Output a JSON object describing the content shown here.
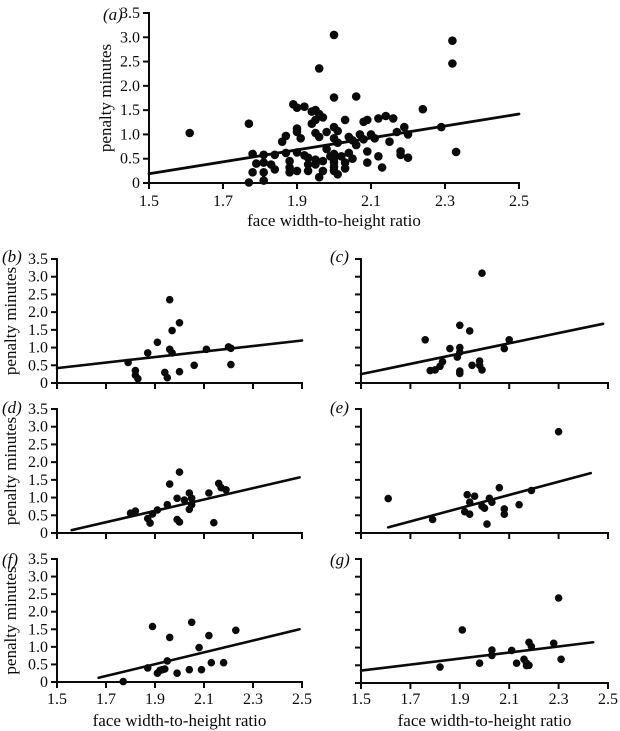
{
  "figure": {
    "x_label": "face width-to-height ratio",
    "y_label": "penalty minutes",
    "xlim": [
      1.5,
      2.5
    ],
    "ylim": [
      0,
      3.5
    ],
    "x_ticks": [
      1.5,
      1.7,
      1.9,
      2.1,
      2.3,
      2.5
    ],
    "x_tick_labels": [
      "1.5",
      "1.7",
      "1.9",
      "2.1",
      "2.3",
      "2.5"
    ],
    "y_ticks": [
      0,
      0.5,
      1.0,
      1.5,
      2.0,
      2.5,
      3.0,
      3.5
    ],
    "y_tick_labels": [
      "0",
      "0.5",
      "1.0",
      "1.5",
      "2.0",
      "2.5",
      "3.0",
      "3.5"
    ],
    "ink_color": "#0a0a0a",
    "background_color": "#ffffff",
    "grid": false,
    "legend": "none"
  },
  "chart_data": [
    {
      "id": "a",
      "label": "(a)",
      "type": "scatter",
      "xlabel": "face width-to-height ratio",
      "ylabel": "penalty minutes",
      "regression_line": {
        "x1": 1.5,
        "y1": 0.19,
        "x2": 2.5,
        "y2": 1.42
      },
      "points": [
        [
          1.61,
          1.03
        ],
        [
          1.77,
          1.22
        ],
        [
          1.77,
          0.01
        ],
        [
          1.78,
          0.6
        ],
        [
          1.79,
          0.4
        ],
        [
          1.78,
          0.22
        ],
        [
          1.81,
          0.58
        ],
        [
          1.81,
          0.42
        ],
        [
          1.81,
          0.22
        ],
        [
          1.81,
          0.05
        ],
        [
          1.83,
          0.38
        ],
        [
          1.84,
          0.58
        ],
        [
          1.84,
          0.28
        ],
        [
          1.86,
          0.85
        ],
        [
          1.87,
          0.97
        ],
        [
          1.87,
          0.62
        ],
        [
          1.88,
          0.45
        ],
        [
          1.88,
          0.32
        ],
        [
          1.88,
          0.22
        ],
        [
          1.89,
          1.62
        ],
        [
          1.9,
          1.55
        ],
        [
          1.9,
          1.12
        ],
        [
          1.9,
          1.05
        ],
        [
          1.91,
          0.92
        ],
        [
          1.9,
          0.63
        ],
        [
          1.9,
          0.25
        ],
        [
          1.92,
          0.57
        ],
        [
          1.92,
          1.57
        ],
        [
          1.93,
          0.52
        ],
        [
          1.93,
          0.38
        ],
        [
          1.93,
          0.25
        ],
        [
          1.94,
          1.47
        ],
        [
          1.95,
          1.5
        ],
        [
          1.95,
          1.3
        ],
        [
          1.94,
          1.22
        ],
        [
          1.96,
          1.42
        ],
        [
          1.96,
          2.36
        ],
        [
          1.95,
          1.03
        ],
        [
          1.96,
          0.95
        ],
        [
          1.97,
          1.35
        ],
        [
          1.95,
          0.48
        ],
        [
          1.95,
          0.38
        ],
        [
          1.96,
          0.12
        ],
        [
          1.97,
          0.45
        ],
        [
          1.97,
          0.25
        ],
        [
          1.98,
          1.05
        ],
        [
          1.98,
          0.7
        ],
        [
          1.99,
          0.55
        ],
        [
          2.0,
          3.05
        ],
        [
          2.0,
          1.76
        ],
        [
          2.06,
          1.78
        ],
        [
          2.0,
          1.15
        ],
        [
          2.01,
          1.07
        ],
        [
          2.0,
          0.92
        ],
        [
          2.01,
          0.83
        ],
        [
          2.0,
          0.6
        ],
        [
          2.0,
          0.5
        ],
        [
          2.0,
          0.42
        ],
        [
          2.0,
          0.33
        ],
        [
          2.0,
          0.25
        ],
        [
          2.01,
          0.18
        ],
        [
          2.02,
          0.55
        ],
        [
          2.03,
          0.42
        ],
        [
          2.03,
          0.3
        ],
        [
          2.03,
          1.3
        ],
        [
          2.04,
          0.95
        ],
        [
          2.05,
          0.88
        ],
        [
          2.04,
          0.62
        ],
        [
          2.05,
          0.5
        ],
        [
          2.06,
          0.78
        ],
        [
          2.07,
          1.0
        ],
        [
          2.08,
          1.26
        ],
        [
          2.09,
          1.3
        ],
        [
          2.08,
          0.9
        ],
        [
          2.09,
          0.65
        ],
        [
          2.09,
          0.42
        ],
        [
          2.1,
          1.0
        ],
        [
          2.11,
          0.92
        ],
        [
          2.12,
          1.33
        ],
        [
          2.14,
          1.38
        ],
        [
          2.12,
          0.55
        ],
        [
          2.13,
          0.32
        ],
        [
          2.15,
          0.85
        ],
        [
          2.16,
          1.33
        ],
        [
          2.17,
          1.05
        ],
        [
          2.18,
          0.65
        ],
        [
          2.18,
          0.58
        ],
        [
          2.19,
          1.15
        ],
        [
          2.2,
          1.0
        ],
        [
          2.2,
          0.52
        ],
        [
          2.24,
          1.52
        ],
        [
          2.29,
          1.15
        ],
        [
          2.32,
          2.93
        ],
        [
          2.32,
          2.46
        ],
        [
          2.33,
          0.64
        ]
      ]
    },
    {
      "id": "b",
      "label": "(b)",
      "type": "scatter",
      "xlabel": "",
      "ylabel": "penalty minutes",
      "regression_line": {
        "x1": 1.5,
        "y1": 0.42,
        "x2": 2.5,
        "y2": 1.2
      },
      "points": [
        [
          1.79,
          0.58
        ],
        [
          1.82,
          0.35
        ],
        [
          1.82,
          0.22
        ],
        [
          1.83,
          0.12
        ],
        [
          1.87,
          0.85
        ],
        [
          1.91,
          1.15
        ],
        [
          1.94,
          0.3
        ],
        [
          1.95,
          0.15
        ],
        [
          1.96,
          2.35
        ],
        [
          1.97,
          1.48
        ],
        [
          1.96,
          0.95
        ],
        [
          1.97,
          0.85
        ],
        [
          2.0,
          1.7
        ],
        [
          2.0,
          0.32
        ],
        [
          2.06,
          0.5
        ],
        [
          2.11,
          0.95
        ],
        [
          2.2,
          1.02
        ],
        [
          2.21,
          0.98
        ],
        [
          2.21,
          0.52
        ]
      ]
    },
    {
      "id": "c",
      "label": "(c)",
      "type": "scatter",
      "xlabel": "",
      "ylabel": "",
      "regression_line": {
        "x1": 1.5,
        "y1": 0.25,
        "x2": 2.48,
        "y2": 1.67
      },
      "points": [
        [
          1.99,
          3.1
        ],
        [
          1.9,
          1.63
        ],
        [
          1.94,
          1.47
        ],
        [
          1.76,
          1.22
        ],
        [
          2.1,
          1.22
        ],
        [
          1.86,
          0.97
        ],
        [
          2.08,
          0.97
        ],
        [
          1.9,
          1.0
        ],
        [
          1.9,
          0.87
        ],
        [
          1.89,
          0.73
        ],
        [
          1.83,
          0.6
        ],
        [
          1.95,
          0.5
        ],
        [
          1.98,
          0.62
        ],
        [
          1.98,
          0.5
        ],
        [
          1.99,
          0.37
        ],
        [
          1.78,
          0.35
        ],
        [
          1.8,
          0.37
        ],
        [
          1.82,
          0.47
        ],
        [
          1.9,
          0.34
        ],
        [
          1.9,
          0.27
        ]
      ]
    },
    {
      "id": "d",
      "label": "(d)",
      "type": "scatter",
      "xlabel": "",
      "ylabel": "penalty minutes",
      "regression_line": {
        "x1": 1.56,
        "y1": 0.08,
        "x2": 2.49,
        "y2": 1.57
      },
      "points": [
        [
          2.0,
          1.72
        ],
        [
          1.96,
          1.38
        ],
        [
          2.16,
          1.4
        ],
        [
          2.17,
          1.28
        ],
        [
          2.19,
          1.22
        ],
        [
          2.12,
          1.13
        ],
        [
          2.04,
          1.13
        ],
        [
          1.99,
          0.98
        ],
        [
          2.02,
          0.93
        ],
        [
          2.05,
          0.98
        ],
        [
          2.05,
          0.8
        ],
        [
          2.04,
          0.67
        ],
        [
          1.95,
          0.8
        ],
        [
          1.91,
          0.65
        ],
        [
          1.89,
          0.54
        ],
        [
          1.8,
          0.56
        ],
        [
          1.82,
          0.62
        ],
        [
          1.87,
          0.41
        ],
        [
          1.88,
          0.28
        ],
        [
          1.99,
          0.38
        ],
        [
          2.0,
          0.31
        ],
        [
          2.14,
          0.29
        ]
      ]
    },
    {
      "id": "e",
      "label": "(e)",
      "type": "scatter",
      "xlabel": "",
      "ylabel": "",
      "regression_line": {
        "x1": 1.61,
        "y1": 0.16,
        "x2": 2.43,
        "y2": 1.69
      },
      "points": [
        [
          2.3,
          2.86
        ],
        [
          1.61,
          0.97
        ],
        [
          2.06,
          1.28
        ],
        [
          2.19,
          1.2
        ],
        [
          1.93,
          1.08
        ],
        [
          1.96,
          1.04
        ],
        [
          2.02,
          0.98
        ],
        [
          2.03,
          0.87
        ],
        [
          1.94,
          0.87
        ],
        [
          1.99,
          0.76
        ],
        [
          2.0,
          0.7
        ],
        [
          2.14,
          0.8
        ],
        [
          2.08,
          0.68
        ],
        [
          1.92,
          0.6
        ],
        [
          1.94,
          0.53
        ],
        [
          2.08,
          0.53
        ],
        [
          1.79,
          0.38
        ],
        [
          2.01,
          0.25
        ]
      ]
    },
    {
      "id": "f",
      "label": "(f)",
      "type": "scatter",
      "xlabel": "face width-to-height ratio",
      "ylabel": "penalty minutes",
      "regression_line": {
        "x1": 1.67,
        "y1": 0.12,
        "x2": 2.49,
        "y2": 1.5
      },
      "points": [
        [
          1.77,
          0.01
        ],
        [
          1.89,
          1.58
        ],
        [
          1.96,
          1.27
        ],
        [
          2.05,
          1.7
        ],
        [
          2.08,
          0.98
        ],
        [
          2.12,
          1.32
        ],
        [
          2.23,
          1.47
        ],
        [
          1.87,
          0.4
        ],
        [
          1.91,
          0.25
        ],
        [
          1.92,
          0.33
        ],
        [
          1.93,
          0.35
        ],
        [
          1.94,
          0.37
        ],
        [
          1.95,
          0.6
        ],
        [
          1.99,
          0.25
        ],
        [
          2.04,
          0.35
        ],
        [
          2.09,
          0.35
        ],
        [
          2.13,
          0.55
        ],
        [
          2.18,
          0.55
        ]
      ]
    },
    {
      "id": "g",
      "label": "(g)",
      "type": "scatter",
      "xlabel": "face width-to-height ratio",
      "ylabel": "",
      "regression_line": {
        "x1": 1.5,
        "y1": 0.35,
        "x2": 2.44,
        "y2": 1.15
      },
      "points": [
        [
          2.3,
          2.4
        ],
        [
          1.91,
          1.5
        ],
        [
          2.18,
          1.15
        ],
        [
          2.19,
          1.03
        ],
        [
          2.28,
          1.12
        ],
        [
          2.03,
          0.93
        ],
        [
          2.03,
          0.78
        ],
        [
          2.11,
          0.92
        ],
        [
          2.13,
          0.56
        ],
        [
          2.16,
          0.67
        ],
        [
          2.17,
          0.56
        ],
        [
          2.17,
          0.49
        ],
        [
          2.18,
          0.5
        ],
        [
          1.98,
          0.56
        ],
        [
          1.82,
          0.45
        ],
        [
          2.31,
          0.67
        ]
      ]
    }
  ]
}
